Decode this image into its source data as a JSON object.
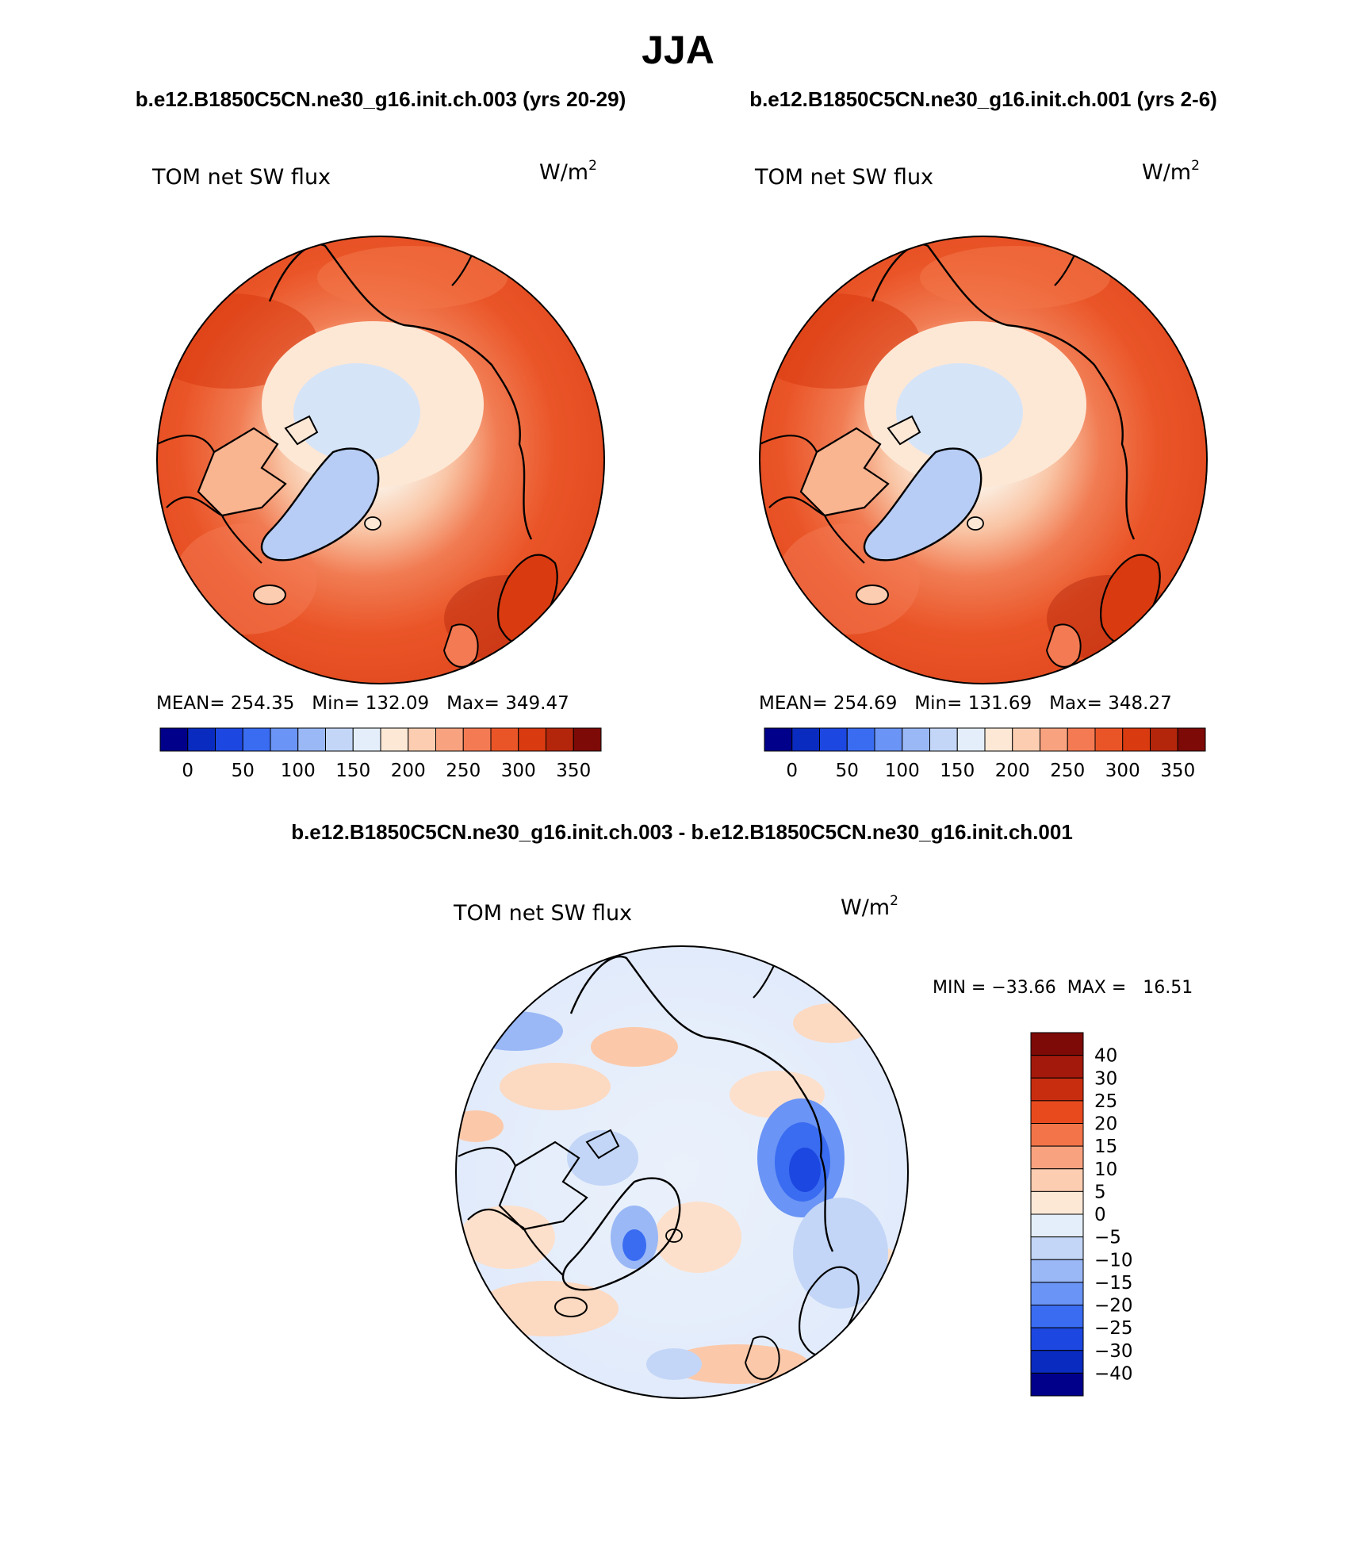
{
  "title": "JJA",
  "panels": [
    {
      "heading": "b.e12.B1850C5CN.ne30_g16.init.ch.003 (yrs 20-29)",
      "variable": "TOM net SW flux",
      "units_base": "W/m",
      "units_exp": "2",
      "stats": "MEAN= 254.35   Min= 132.09   Max= 349.47"
    },
    {
      "heading": "b.e12.B1850C5CN.ne30_g16.init.ch.001 (yrs 2-6)",
      "variable": "TOM net SW flux",
      "units_base": "W/m",
      "units_exp": "2",
      "stats": "MEAN= 254.69   Min= 131.69   Max= 348.27"
    }
  ],
  "abs_colorbar": {
    "colors": [
      "#00008b",
      "#0a2bbf",
      "#1c47e0",
      "#3a6cf2",
      "#6a94f5",
      "#9ab8f6",
      "#c3d6f7",
      "#e3eefa",
      "#fde8d6",
      "#fccdb1",
      "#f9a27f",
      "#f37a53",
      "#ea5528",
      "#d93a10",
      "#b4260b",
      "#7d0a07"
    ],
    "tick_labels": [
      "0",
      "50",
      "100",
      "150",
      "200",
      "250",
      "300",
      "350"
    ]
  },
  "diff_panel": {
    "heading": "b.e12.B1850C5CN.ne30_g16.init.ch.003 - b.e12.B1850C5CN.ne30_g16.init.ch.001",
    "variable": "TOM net SW flux",
    "units_base": "W/m",
    "units_exp": "2",
    "minmax": "MIN = −33.66  MAX =   16.51"
  },
  "diff_colorbar": {
    "colors": [
      "#7d0a07",
      "#a3190b",
      "#c82d0f",
      "#e84a1e",
      "#f27448",
      "#f9a27f",
      "#fccdb1",
      "#fde8d6",
      "#e3eefa",
      "#c3d6f7",
      "#9ab8f6",
      "#6a94f5",
      "#3a6cf2",
      "#1c47e0",
      "#0a2bbf",
      "#00008b"
    ],
    "tick_labels": [
      "40",
      "30",
      "25",
      "20",
      "15",
      "10",
      "5",
      "0",
      "−5",
      "−10",
      "−15",
      "−20",
      "−25",
      "−30",
      "−40"
    ]
  },
  "colors": {
    "warm_dominant": "#ea5528",
    "cold_greenland": "#b7cdf5",
    "diff_negative": "#1f4fe0",
    "coastline": "#000000"
  }
}
